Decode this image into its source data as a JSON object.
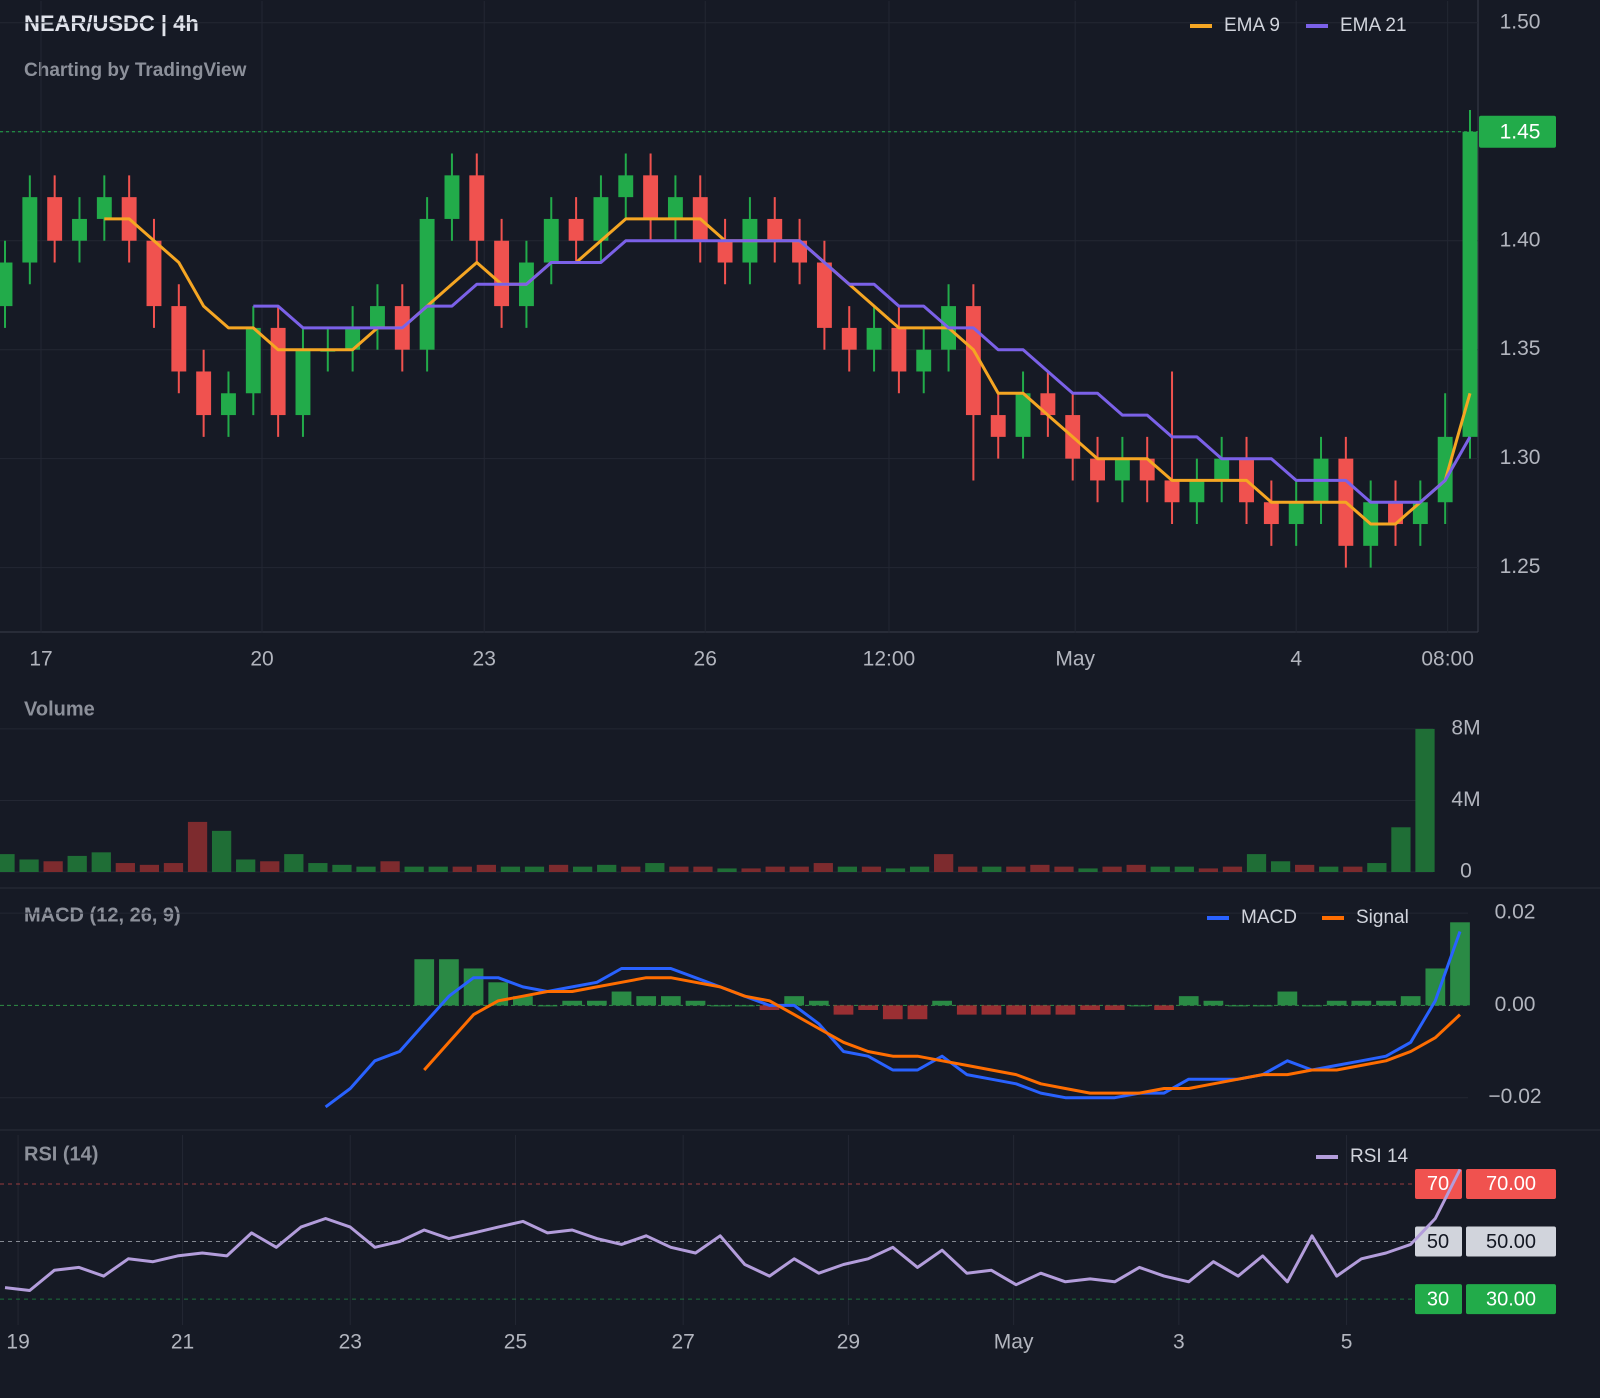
{
  "chart_data": [
    {
      "type": "candlestick",
      "title": "NEAR/USDC | 4h",
      "subtitle": "Charting by TradingView",
      "open": [
        1.37,
        1.39,
        1.42,
        1.4,
        1.41,
        1.42,
        1.4,
        1.37,
        1.34,
        1.32,
        1.33,
        1.36,
        1.32,
        1.35,
        1.35,
        1.36,
        1.37,
        1.35,
        1.41,
        1.43,
        1.4,
        1.37,
        1.39,
        1.41,
        1.4,
        1.42,
        1.43,
        1.41,
        1.42,
        1.4,
        1.39,
        1.41,
        1.4,
        1.39,
        1.36,
        1.35,
        1.36,
        1.34,
        1.35,
        1.37,
        1.32,
        1.31,
        1.33,
        1.32,
        1.3,
        1.29,
        1.3,
        1.29,
        1.28,
        1.29,
        1.3,
        1.28,
        1.27,
        1.28,
        1.3,
        1.26,
        1.28,
        1.27,
        1.28,
        1.31
      ],
      "high": [
        1.4,
        1.43,
        1.43,
        1.42,
        1.43,
        1.43,
        1.41,
        1.38,
        1.35,
        1.34,
        1.37,
        1.37,
        1.36,
        1.36,
        1.37,
        1.38,
        1.38,
        1.42,
        1.44,
        1.44,
        1.41,
        1.4,
        1.42,
        1.42,
        1.43,
        1.44,
        1.44,
        1.43,
        1.43,
        1.41,
        1.42,
        1.42,
        1.41,
        1.4,
        1.37,
        1.37,
        1.37,
        1.36,
        1.38,
        1.38,
        1.33,
        1.34,
        1.34,
        1.33,
        1.31,
        1.31,
        1.31,
        1.34,
        1.3,
        1.31,
        1.31,
        1.29,
        1.29,
        1.31,
        1.31,
        1.29,
        1.29,
        1.29,
        1.33,
        1.46
      ],
      "low": [
        1.36,
        1.38,
        1.39,
        1.39,
        1.4,
        1.39,
        1.36,
        1.33,
        1.31,
        1.31,
        1.32,
        1.31,
        1.31,
        1.34,
        1.34,
        1.35,
        1.34,
        1.34,
        1.4,
        1.39,
        1.36,
        1.36,
        1.38,
        1.39,
        1.39,
        1.41,
        1.4,
        1.4,
        1.39,
        1.38,
        1.38,
        1.39,
        1.38,
        1.35,
        1.34,
        1.34,
        1.33,
        1.33,
        1.34,
        1.29,
        1.3,
        1.3,
        1.31,
        1.29,
        1.28,
        1.28,
        1.28,
        1.27,
        1.27,
        1.28,
        1.27,
        1.26,
        1.26,
        1.27,
        1.25,
        1.25,
        1.26,
        1.26,
        1.27,
        1.3
      ],
      "close": [
        1.39,
        1.42,
        1.4,
        1.41,
        1.42,
        1.4,
        1.37,
        1.34,
        1.32,
        1.33,
        1.36,
        1.32,
        1.35,
        1.35,
        1.36,
        1.37,
        1.35,
        1.41,
        1.43,
        1.4,
        1.37,
        1.39,
        1.41,
        1.4,
        1.42,
        1.43,
        1.41,
        1.42,
        1.4,
        1.39,
        1.41,
        1.4,
        1.39,
        1.36,
        1.35,
        1.36,
        1.34,
        1.35,
        1.37,
        1.32,
        1.31,
        1.33,
        1.32,
        1.3,
        1.29,
        1.3,
        1.29,
        1.28,
        1.29,
        1.3,
        1.28,
        1.27,
        1.28,
        1.3,
        1.26,
        1.28,
        1.27,
        1.28,
        1.31,
        1.45
      ],
      "up_color": "#22ab4a",
      "down_color": "#f0524f",
      "series": [
        {
          "name": "EMA 9",
          "color": "#f5a623",
          "values": [
            null,
            null,
            null,
            null,
            1.41,
            1.41,
            1.4,
            1.39,
            1.37,
            1.36,
            1.36,
            1.35,
            1.35,
            1.35,
            1.35,
            1.36,
            1.36,
            1.37,
            1.38,
            1.39,
            1.38,
            1.38,
            1.39,
            1.39,
            1.4,
            1.41,
            1.41,
            1.41,
            1.41,
            1.4,
            1.4,
            1.4,
            1.4,
            1.39,
            1.38,
            1.37,
            1.36,
            1.36,
            1.36,
            1.35,
            1.33,
            1.33,
            1.32,
            1.31,
            1.3,
            1.3,
            1.3,
            1.29,
            1.29,
            1.29,
            1.29,
            1.28,
            1.28,
            1.28,
            1.28,
            1.27,
            1.27,
            1.28,
            1.29,
            1.33
          ]
        },
        {
          "name": "EMA 21",
          "color": "#7b61e8",
          "values": [
            null,
            null,
            null,
            null,
            null,
            null,
            null,
            null,
            null,
            null,
            1.37,
            1.37,
            1.36,
            1.36,
            1.36,
            1.36,
            1.36,
            1.37,
            1.37,
            1.38,
            1.38,
            1.38,
            1.39,
            1.39,
            1.39,
            1.4,
            1.4,
            1.4,
            1.4,
            1.4,
            1.4,
            1.4,
            1.4,
            1.39,
            1.38,
            1.38,
            1.37,
            1.37,
            1.36,
            1.36,
            1.35,
            1.35,
            1.34,
            1.33,
            1.33,
            1.32,
            1.32,
            1.31,
            1.31,
            1.3,
            1.3,
            1.3,
            1.29,
            1.29,
            1.29,
            1.28,
            1.28,
            1.28,
            1.29,
            1.31
          ]
        }
      ],
      "ylim": [
        1.22,
        1.51
      ],
      "yticks": [
        1.25,
        {
          "value": 1.3,
          "label": "1.30"
        },
        1.35,
        {
          "value": 1.4,
          "label": "1.40"
        },
        1.45,
        {
          "value": 1.5,
          "label": "1.50"
        }
      ],
      "xticks": [
        {
          "value": 1.45,
          "label": "17"
        },
        {
          "value": 10.35,
          "label": "20"
        },
        {
          "value": 19.3,
          "label": "23"
        },
        {
          "value": 28.2,
          "label": "26"
        },
        {
          "value": 35.6,
          "label": "12:00"
        },
        {
          "value": 43.1,
          "label": "May"
        },
        {
          "value": 52.0,
          "label": "4"
        },
        {
          "value": 58.1,
          "label": "08:00"
        }
      ],
      "last_price": 1.45
    },
    {
      "type": "bar",
      "title": "Volume",
      "values": [
        1000000,
        700000,
        600000,
        900000,
        1100000,
        500000,
        400000,
        500000,
        2800000,
        2300000,
        700000,
        600000,
        1000000,
        500000,
        400000,
        300000,
        600000,
        300000,
        300000,
        300000,
        400000,
        300000,
        300000,
        400000,
        300000,
        400000,
        300000,
        500000,
        300000,
        300000,
        200000,
        200000,
        300000,
        300000,
        500000,
        300000,
        300000,
        200000,
        300000,
        1000000,
        300000,
        300000,
        300000,
        400000,
        300000,
        200000,
        300000,
        400000,
        300000,
        300000,
        200000,
        300000,
        1000000,
        600000,
        400000,
        300000,
        300000,
        500000,
        2500000,
        8000000
      ],
      "up_color": "#1f6e36",
      "down_color": "#7d2b2e",
      "ylim": [
        0,
        9000000
      ],
      "yticks": [
        {
          "value": 8000000,
          "label": "8M"
        },
        {
          "value": 4000000,
          "label": "4M"
        },
        0
      ]
    },
    {
      "type": "macd",
      "title": "MACD (12, 26, 9)",
      "series": [
        {
          "name": "MACD",
          "color": "#2962ff",
          "values": [
            null,
            null,
            null,
            null,
            null,
            null,
            null,
            null,
            null,
            null,
            null,
            null,
            null,
            -0.022,
            -0.018,
            -0.012,
            -0.01,
            -0.004,
            0.002,
            0.006,
            0.006,
            0.004,
            0.003,
            0.004,
            0.005,
            0.008,
            0.008,
            0.008,
            0.006,
            0.004,
            0.002,
            0.0,
            0.0,
            -0.004,
            -0.01,
            -0.011,
            -0.014,
            -0.014,
            -0.011,
            -0.015,
            -0.016,
            -0.017,
            -0.019,
            -0.02,
            -0.02,
            -0.02,
            -0.019,
            -0.019,
            -0.016,
            -0.016,
            -0.016,
            -0.015,
            -0.012,
            -0.014,
            -0.013,
            -0.012,
            -0.011,
            -0.008,
            0.001,
            0.016
          ]
        },
        {
          "name": "Signal",
          "color": "#ff6d00",
          "values": [
            null,
            null,
            null,
            null,
            null,
            null,
            null,
            null,
            null,
            null,
            null,
            null,
            null,
            null,
            null,
            null,
            null,
            -0.014,
            -0.008,
            -0.002,
            0.001,
            0.002,
            0.003,
            0.003,
            0.004,
            0.005,
            0.006,
            0.006,
            0.005,
            0.004,
            0.002,
            0.001,
            -0.002,
            -0.005,
            -0.008,
            -0.01,
            -0.011,
            -0.011,
            -0.012,
            -0.013,
            -0.014,
            -0.015,
            -0.017,
            -0.018,
            -0.019,
            -0.019,
            -0.019,
            -0.018,
            -0.018,
            -0.017,
            -0.016,
            -0.015,
            -0.015,
            -0.014,
            -0.014,
            -0.013,
            -0.012,
            -0.01,
            -0.007,
            -0.002
          ]
        }
      ],
      "histogram": {
        "up_color": "#2a8a45",
        "down_color": "#9a2f33",
        "values": [
          null,
          null,
          null,
          null,
          null,
          null,
          null,
          null,
          null,
          null,
          null,
          null,
          null,
          null,
          null,
          null,
          null,
          0.01,
          0.01,
          0.008,
          0.005,
          0.002,
          0.0,
          0.001,
          0.001,
          0.003,
          0.002,
          0.002,
          0.001,
          0.0,
          0.0,
          -0.001,
          0.002,
          0.001,
          -0.002,
          -0.001,
          -0.003,
          -0.003,
          0.001,
          -0.002,
          -0.002,
          -0.002,
          -0.002,
          -0.002,
          -0.001,
          -0.001,
          0.0,
          -0.001,
          0.002,
          0.001,
          0.0,
          0.0,
          0.003,
          0.0,
          0.001,
          0.001,
          0.001,
          0.002,
          0.008,
          0.018
        ]
      },
      "ylim": [
        -0.027,
        0.025
      ],
      "yticks": [
        0.02,
        {
          "value": 0,
          "label": "0.00"
        },
        {
          "value": -0.02,
          "label": "−0.02"
        }
      ]
    },
    {
      "type": "rsi",
      "title": "RSI (14)",
      "series": [
        {
          "name": "RSI 14",
          "color": "#b39ddb",
          "values": [
            34,
            33,
            40,
            41,
            38,
            44,
            43,
            45,
            46,
            45,
            53,
            48,
            55,
            58,
            55,
            48,
            50,
            54,
            51,
            53,
            55,
            57,
            53,
            54,
            51,
            49,
            52,
            48,
            46,
            52,
            42,
            38,
            44,
            39,
            42,
            44,
            48,
            41,
            47,
            39,
            40,
            35,
            39,
            36,
            37,
            36,
            41,
            38,
            36,
            43,
            38,
            45,
            36,
            52,
            38,
            44,
            46,
            49,
            58,
            75
          ]
        }
      ],
      "ylim": [
        21,
        87
      ],
      "yticks": [
        {
          "value": 70,
          "label": "70.00"
        },
        {
          "value": 50,
          "label": "50.00"
        },
        {
          "value": 30,
          "label": "30.00"
        }
      ],
      "tick_colors": [
        "#f0524f",
        "#d1d4dc",
        "#22ab4a"
      ],
      "xticks": [
        {
          "value": 0.53,
          "label": "19"
        },
        {
          "value": 7.2,
          "label": "21"
        },
        {
          "value": 14.0,
          "label": "23"
        },
        {
          "value": 20.7,
          "label": "25"
        },
        {
          "value": 27.5,
          "label": "27"
        },
        {
          "value": 34.2,
          "label": "29"
        },
        {
          "value": 40.9,
          "label": "May"
        },
        {
          "value": 47.6,
          "label": "3"
        },
        {
          "value": 54.4,
          "label": "5"
        }
      ]
    }
  ]
}
